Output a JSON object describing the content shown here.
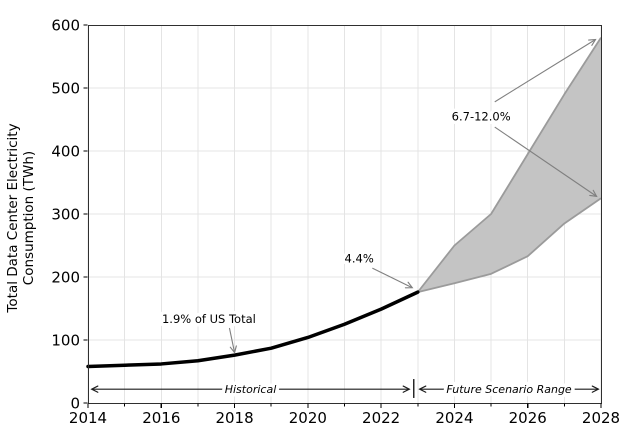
{
  "chart_data": {
    "type": "line",
    "title": "",
    "xlabel": "",
    "ylabel_lines": [
      "Total Data Center Electricity",
      "Consumption (TWh)"
    ],
    "xlim": [
      2014,
      2028
    ],
    "ylim": [
      0,
      600
    ],
    "x_major_ticks": [
      2014,
      2016,
      2018,
      2020,
      2022,
      2024,
      2026,
      2028
    ],
    "x_minor_ticks": [
      2015,
      2017,
      2019,
      2021,
      2023,
      2025,
      2027
    ],
    "y_ticks": [
      0,
      100,
      200,
      300,
      400,
      500,
      600
    ],
    "grid": {
      "vertical_every_year": true,
      "horizontal_major": true
    },
    "series": [
      {
        "name": "Historical",
        "kind": "line",
        "color": "#000000",
        "width": 3.5,
        "x": [
          2014,
          2015,
          2016,
          2017,
          2018,
          2019,
          2020,
          2021,
          2022,
          2023
        ],
        "values": [
          58,
          60,
          62,
          67,
          76,
          87,
          104,
          125,
          149,
          176
        ]
      },
      {
        "name": "Future Scenario Range",
        "kind": "band",
        "fill": "#c4c4c4",
        "edge": "#9b9b9b",
        "edge_width": 1.8,
        "x": [
          2023,
          2024,
          2025,
          2026,
          2027,
          2028
        ],
        "lower": [
          176,
          190,
          205,
          233,
          285,
          325
        ],
        "upper": [
          176,
          250,
          300,
          395,
          490,
          580
        ]
      }
    ],
    "annotations": [
      {
        "text": "1.9% of US Total",
        "xy": [
          2017.3,
          133
        ],
        "arrows": [
          {
            "from": [
              2017.86,
              119
            ],
            "to": [
              2018.0,
              80
            ]
          }
        ]
      },
      {
        "text": "4.4%",
        "xy": [
          2021.4,
          229
        ],
        "arrows": [
          {
            "from": [
              2021.76,
              214
            ],
            "to": [
              2022.85,
              183
            ]
          }
        ]
      },
      {
        "text": "6.7-12.0%",
        "xy": [
          2024.73,
          455
        ],
        "arrows": [
          {
            "from": [
              2025.1,
              478
            ],
            "to": [
              2027.85,
              577
            ]
          },
          {
            "from": [
              2025.1,
              438
            ],
            "to": [
              2027.88,
              328
            ]
          }
        ]
      }
    ],
    "span_labels": [
      {
        "text": "Historical",
        "from": 2014.1,
        "to": 2022.77,
        "y": 22
      },
      {
        "text": "Future Scenario Range",
        "from": 2023.05,
        "to": 2027.93,
        "y": 22
      }
    ],
    "span_divider": {
      "x": 2022.89,
      "y_top": 38,
      "y_bottom": 8
    },
    "colors": {
      "grid": "#e4e4e4",
      "spine": "#2f2f2f",
      "arrow": "#808080",
      "span_arrow": "#1a1a1a",
      "text": "#000000",
      "background": "#ffffff"
    }
  }
}
